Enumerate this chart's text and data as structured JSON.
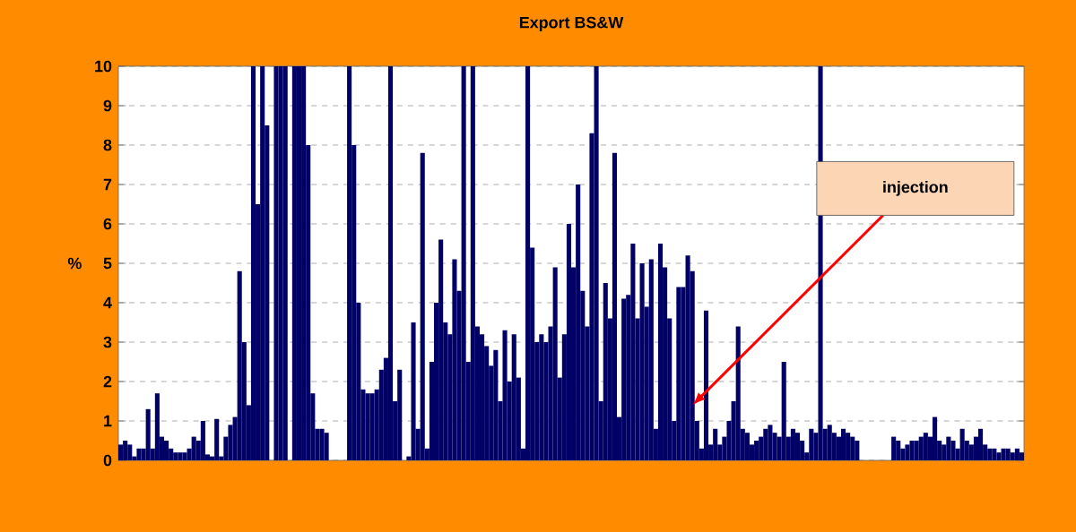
{
  "chart_data": {
    "type": "bar",
    "title": "Export BS&W",
    "ylabel": "%",
    "annotations": [
      "injection"
    ],
    "categories": [
      null,
      null,
      null,
      null,
      null,
      null,
      null,
      null,
      null,
      null,
      null,
      null,
      null,
      null,
      null,
      null,
      null,
      null,
      null,
      null,
      null,
      null,
      null,
      null,
      null,
      null,
      null,
      null,
      null,
      null,
      null,
      null,
      null,
      null,
      null,
      null,
      null,
      null,
      null,
      null,
      null,
      null,
      null,
      null,
      null,
      null,
      null,
      null,
      null,
      null,
      null,
      null,
      null,
      null,
      null,
      null,
      null,
      null,
      null,
      null,
      null,
      null,
      null,
      null,
      null,
      null,
      null,
      null,
      null,
      null,
      null,
      null,
      null,
      null,
      null,
      null,
      null,
      null,
      null,
      null,
      null,
      null,
      null,
      null,
      null,
      null,
      null,
      null,
      null,
      null,
      null,
      null,
      null,
      null,
      null,
      null,
      null,
      null,
      null,
      null,
      null,
      null,
      null,
      null,
      null,
      null,
      null,
      null,
      null,
      null,
      null,
      null,
      null,
      null,
      null,
      null,
      null,
      null,
      null,
      null,
      null,
      null,
      null,
      null,
      null,
      null,
      null,
      null,
      null,
      null,
      null,
      null,
      null,
      null,
      null,
      null,
      null,
      null,
      null,
      null,
      null,
      null,
      null,
      null,
      null,
      null,
      null,
      null,
      null,
      null,
      null,
      null,
      null,
      null,
      null,
      null,
      null,
      null,
      null,
      null,
      null,
      null,
      null,
      null,
      null,
      null,
      null,
      null,
      null,
      null,
      null,
      null,
      null,
      null,
      null,
      null,
      null,
      null,
      null,
      null,
      null,
      null,
      null,
      null,
      null,
      null,
      null,
      null,
      null,
      null,
      null,
      null,
      null,
      null,
      null,
      null,
      null,
      null
    ],
    "values": [
      0.4,
      0.5,
      0.4,
      0.1,
      0.3,
      0.3,
      1.3,
      0.3,
      1.7,
      0.6,
      0.5,
      0.3,
      0.2,
      0.2,
      0.2,
      0.3,
      0.6,
      0.5,
      1.0,
      0.15,
      0.1,
      1.05,
      0.1,
      0.6,
      0.9,
      1.1,
      4.8,
      3.0,
      1.4,
      10,
      6.5,
      10,
      8.5,
      null,
      10,
      10,
      10,
      null,
      10,
      10,
      10,
      8.0,
      1.7,
      0.8,
      0.8,
      0.7,
      null,
      null,
      null,
      null,
      10,
      8,
      4,
      1.8,
      1.7,
      1.7,
      1.8,
      2.3,
      2.6,
      10,
      1.5,
      2.3,
      null,
      0.1,
      3.5,
      0.8,
      7.8,
      0.3,
      2.5,
      4,
      5.6,
      3.5,
      3.2,
      5.1,
      4.3,
      10,
      2.5,
      10,
      3.4,
      3.2,
      2.9,
      2.4,
      2.8,
      1.5,
      3.3,
      2.0,
      3.2,
      2.1,
      0.3,
      10,
      5.4,
      3,
      3.2,
      3.0,
      3.4,
      4.9,
      2.1,
      3.2,
      6.0,
      4.9,
      7.0,
      4.3,
      3.4,
      8.3,
      10,
      1.5,
      4.5,
      3.6,
      7.8,
      1.1,
      4.1,
      4.2,
      5.5,
      3.6,
      5.0,
      3.9,
      5.1,
      0.8,
      5.5,
      4.9,
      3.6,
      1.0,
      4.4,
      4.4,
      5.2,
      4.8,
      1.0,
      0.3,
      3.8,
      0.4,
      0.8,
      0.4,
      0.6,
      1.0,
      1.5,
      3.4,
      0.8,
      0.7,
      0.4,
      0.5,
      0.6,
      0.8,
      0.9,
      0.7,
      0.6,
      2.5,
      0.6,
      0.8,
      0.7,
      0.5,
      0.2,
      0.8,
      0.7,
      10,
      0.8,
      0.9,
      0.7,
      0.6,
      0.8,
      0.7,
      0.6,
      0.5,
      null,
      null,
      null,
      null,
      null,
      null,
      null,
      0.6,
      0.5,
      0.3,
      0.4,
      0.5,
      0.5,
      0.6,
      0.7,
      0.6,
      1.1,
      0.5,
      0.4,
      0.6,
      0.5,
      0.3,
      0.8,
      0.5,
      0.4,
      0.6,
      0.8,
      0.4,
      0.3,
      0.3,
      0.2,
      0.3,
      0.3,
      0.2,
      0.3,
      0.2
    ],
    "color": "#000066",
    "ylim": [
      0,
      10
    ],
    "yticks": [
      0,
      1,
      2,
      3,
      4,
      5,
      6,
      7,
      8,
      9,
      10
    ],
    "grid": "y"
  }
}
